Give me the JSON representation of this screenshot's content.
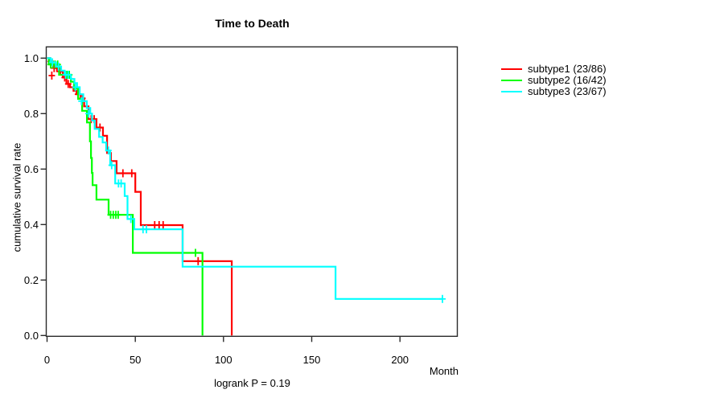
{
  "chart": {
    "title": "Time to Death",
    "xlabel": "Month",
    "ylabel": "cumulative survival rate",
    "annotation": "logrank P = 0.19"
  },
  "chart_data": {
    "type": "line",
    "subtype": "kaplan-meier-step-curves",
    "title": "Time to Death",
    "xlabel": "Month",
    "ylabel": "cumulative survival rate",
    "annotation": "logrank P = 0.19",
    "xlim": [
      0,
      233
    ],
    "ylim": [
      0,
      1.04
    ],
    "x_ticks": [
      0,
      50,
      100,
      150,
      200
    ],
    "x_tick_labels": [
      "0",
      "50",
      "100",
      "150",
      "200"
    ],
    "y_ticks": [
      0.0,
      0.2,
      0.4,
      0.6,
      0.8,
      1.0
    ],
    "y_tick_labels": [
      "0.0",
      "0.2",
      "0.4",
      "0.6",
      "0.8",
      "1.0"
    ],
    "grid": false,
    "legend_position": "outside-top-right",
    "series": [
      {
        "name": "subtype1 (23/86)",
        "color": "#ff0000",
        "steps": [
          [
            0,
            1.0
          ],
          [
            1.5,
            0.988
          ],
          [
            3,
            0.976
          ],
          [
            4.5,
            0.964
          ],
          [
            6.5,
            0.952
          ],
          [
            9,
            0.93
          ],
          [
            11,
            0.907
          ],
          [
            13,
            0.895
          ],
          [
            15,
            0.882
          ],
          [
            16.7,
            0.87
          ],
          [
            19,
            0.855
          ],
          [
            21,
            0.826
          ],
          [
            23.5,
            0.78
          ],
          [
            28,
            0.75
          ],
          [
            31.7,
            0.72
          ],
          [
            34,
            0.658
          ],
          [
            36.2,
            0.629
          ],
          [
            39.4,
            0.585
          ],
          [
            50,
            0.518
          ],
          [
            53.1,
            0.398
          ],
          [
            76.8,
            0.268
          ],
          [
            104.7,
            0.0
          ]
        ],
        "end_month": 104.7,
        "censor_ticks": [
          [
            2,
            0.988
          ],
          [
            2.7,
            0.937
          ],
          [
            4,
            0.964
          ],
          [
            5.5,
            0.964
          ],
          [
            7.5,
            0.952
          ],
          [
            10,
            0.93
          ],
          [
            12,
            0.907
          ],
          [
            17.5,
            0.87
          ],
          [
            20,
            0.855
          ],
          [
            25,
            0.78
          ],
          [
            26.7,
            0.78
          ],
          [
            30,
            0.75
          ],
          [
            43,
            0.585
          ],
          [
            48,
            0.585
          ],
          [
            61,
            0.398
          ],
          [
            63.5,
            0.398
          ],
          [
            65.8,
            0.398
          ],
          [
            85.6,
            0.268
          ]
        ]
      },
      {
        "name": "subtype2 (16/42)",
        "color": "#00ff00",
        "steps": [
          [
            0,
            1.0
          ],
          [
            1,
            0.977
          ],
          [
            6.8,
            0.94
          ],
          [
            13.5,
            0.915
          ],
          [
            15.3,
            0.89
          ],
          [
            17.6,
            0.853
          ],
          [
            19.9,
            0.81
          ],
          [
            22.6,
            0.768
          ],
          [
            24.3,
            0.7
          ],
          [
            24.9,
            0.64
          ],
          [
            25.4,
            0.586
          ],
          [
            25.8,
            0.542
          ],
          [
            28,
            0.49
          ],
          [
            34.9,
            0.435
          ],
          [
            48.6,
            0.298
          ],
          [
            88.1,
            0.0
          ]
        ],
        "end_month": 88.1,
        "censor_ticks": [
          [
            2,
            0.977
          ],
          [
            3.2,
            0.977
          ],
          [
            4.5,
            0.977
          ],
          [
            6,
            0.977
          ],
          [
            11.3,
            0.94
          ],
          [
            12.6,
            0.94
          ],
          [
            36,
            0.435
          ],
          [
            37.5,
            0.435
          ],
          [
            39,
            0.435
          ],
          [
            40.3,
            0.435
          ],
          [
            84.1,
            0.298
          ]
        ]
      },
      {
        "name": "subtype3 (23/67)",
        "color": "#00ffff",
        "steps": [
          [
            0,
            1.0
          ],
          [
            2,
            0.985
          ],
          [
            5,
            0.97
          ],
          [
            8,
            0.955
          ],
          [
            10,
            0.94
          ],
          [
            13.5,
            0.925
          ],
          [
            15.5,
            0.91
          ],
          [
            17,
            0.895
          ],
          [
            18.5,
            0.87
          ],
          [
            20.5,
            0.845
          ],
          [
            22.5,
            0.82
          ],
          [
            24.5,
            0.8
          ],
          [
            25.5,
            0.775
          ],
          [
            27,
            0.745
          ],
          [
            29.5,
            0.716
          ],
          [
            31.5,
            0.696
          ],
          [
            33.5,
            0.667
          ],
          [
            35.8,
            0.614
          ],
          [
            38.6,
            0.548
          ],
          [
            44,
            0.503
          ],
          [
            45.6,
            0.42
          ],
          [
            49.4,
            0.383
          ],
          [
            76.8,
            0.248
          ],
          [
            163.5,
            0.132
          ]
        ],
        "end_month": 224.1,
        "censor_ticks": [
          [
            3,
            0.985
          ],
          [
            6.5,
            0.97
          ],
          [
            10.5,
            0.94
          ],
          [
            12,
            0.94
          ],
          [
            16,
            0.895
          ],
          [
            19.5,
            0.845
          ],
          [
            23.5,
            0.8
          ],
          [
            34.8,
            0.667
          ],
          [
            36.6,
            0.614
          ],
          [
            40.5,
            0.548
          ],
          [
            42,
            0.548
          ],
          [
            47.5,
            0.42
          ],
          [
            54.4,
            0.383
          ],
          [
            56.3,
            0.383
          ],
          [
            224.1,
            0.132
          ]
        ]
      }
    ]
  }
}
